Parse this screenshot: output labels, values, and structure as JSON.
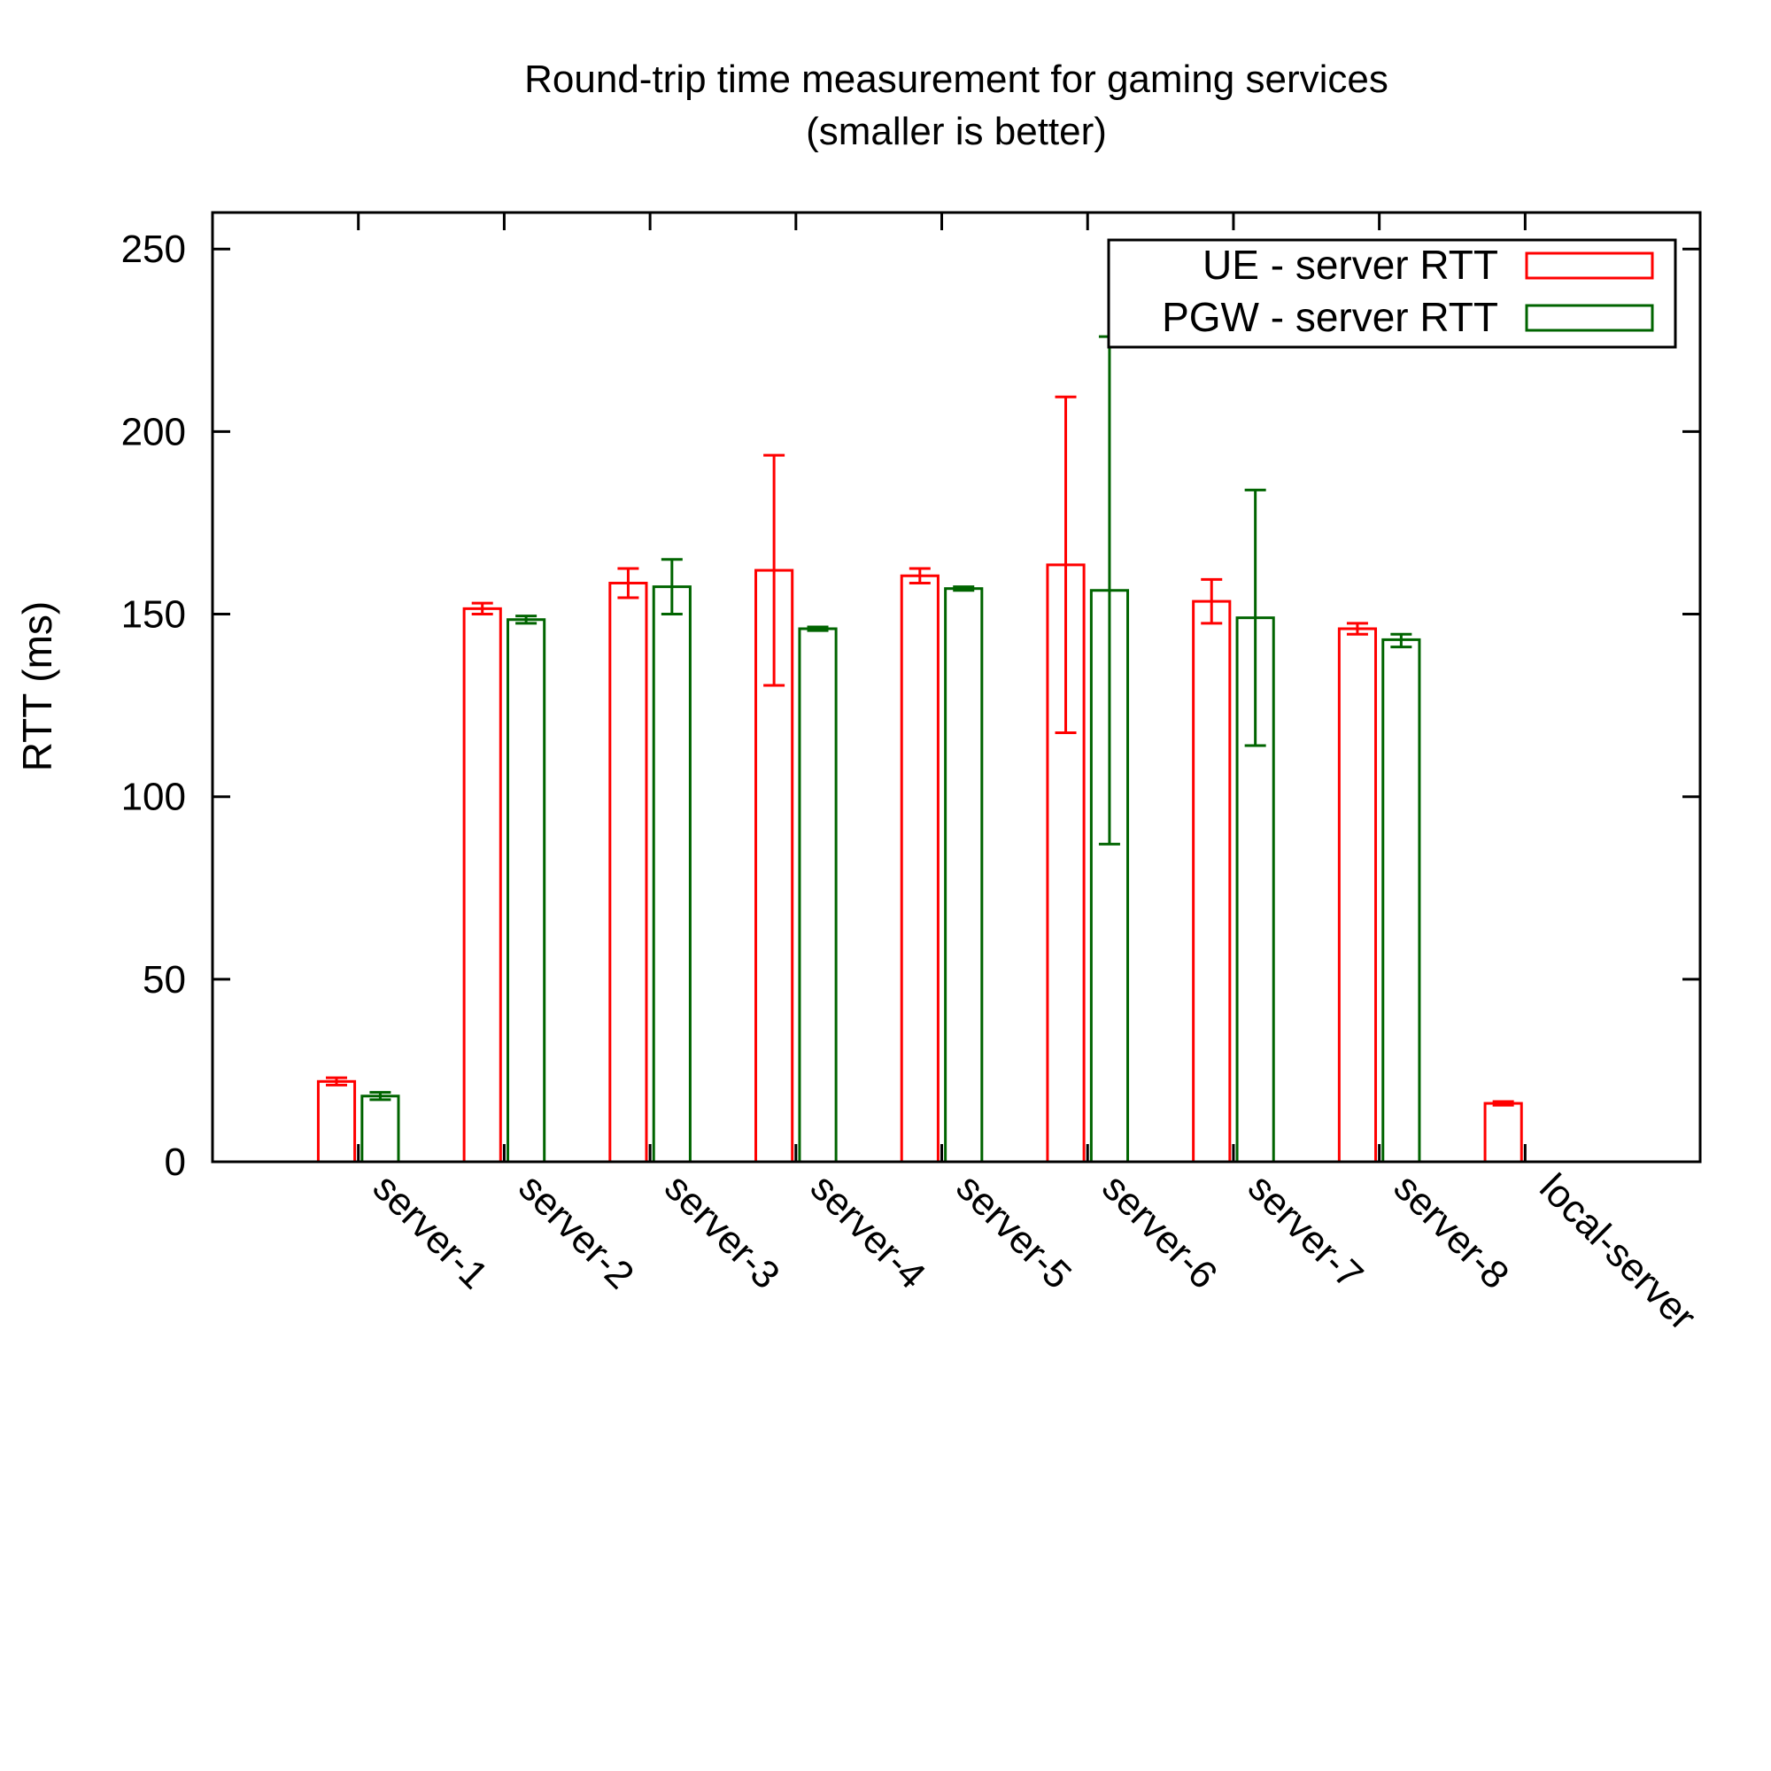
{
  "chart_data": {
    "type": "bar",
    "title": "Round-trip time measurement for gaming services",
    "subtitle": "(smaller is better)",
    "xlabel": "",
    "ylabel": "RTT (ms)",
    "ylim": [
      0,
      260
    ],
    "yticks": [
      0,
      50,
      100,
      150,
      200,
      250
    ],
    "xlim": [
      -1,
      9.2
    ],
    "categories": [
      "server-1",
      "server-2",
      "server-3",
      "server-4",
      "server-5",
      "server-6",
      "server-7",
      "server-8",
      "local-server"
    ],
    "series": [
      {
        "name": "UE - server RTT",
        "color": "#ff0000",
        "values": [
          22,
          151.5,
          158.5,
          162,
          160.5,
          163.5,
          153.5,
          146,
          16
        ],
        "err_low": [
          21,
          150,
          154.5,
          130.5,
          158.5,
          117.5,
          147.5,
          144.5,
          15.5
        ],
        "err_high": [
          23,
          153,
          162.5,
          193.5,
          162.5,
          209.5,
          159.5,
          147.5,
          16.5
        ]
      },
      {
        "name": "PGW - server RTT",
        "color": "#006400",
        "values": [
          18,
          148.5,
          157.5,
          146,
          157,
          156.5,
          149,
          143,
          null
        ],
        "err_low": [
          17,
          147.5,
          150,
          145.5,
          156.5,
          87,
          114,
          141,
          null
        ],
        "err_high": [
          19,
          149.5,
          165,
          146.5,
          157.5,
          226,
          184,
          144.5,
          null
        ]
      }
    ],
    "legend_position": "top-right",
    "grid": false
  }
}
